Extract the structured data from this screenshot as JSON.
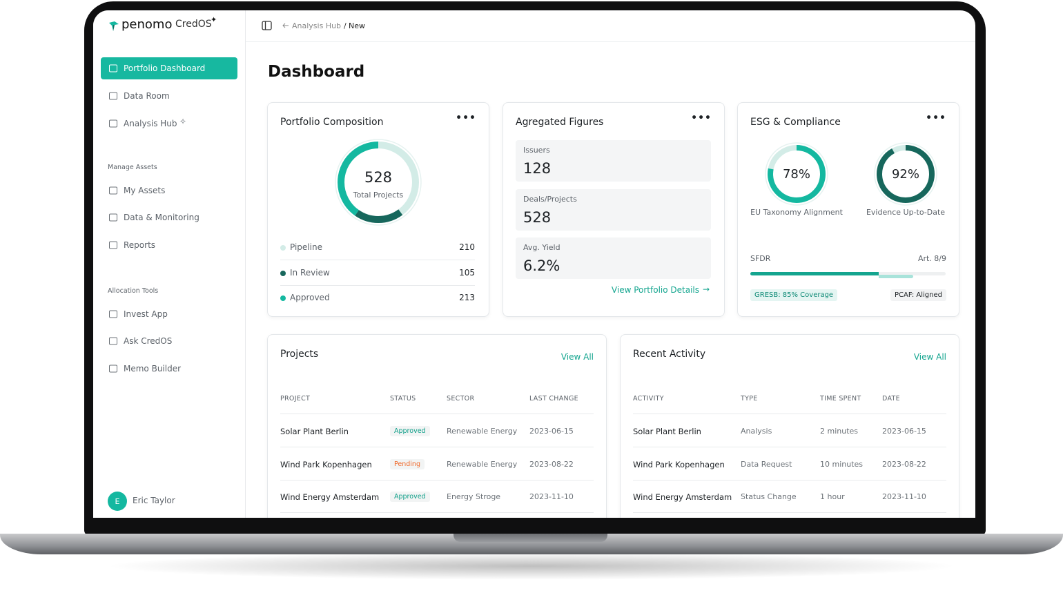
{
  "brand": {
    "name": "penomo",
    "product": "CredOS"
  },
  "breadcrumb": {
    "parent": "Analysis Hub",
    "current": "New"
  },
  "sidebar": {
    "nav": [
      "Portfolio Dashboard",
      "Data Room",
      "Analysis Hub"
    ],
    "sections": [
      {
        "title": "Manage Assets",
        "items": [
          "My Assets",
          "Data & Monitoring",
          "Reports"
        ]
      },
      {
        "title": "Allocation Tools",
        "items": [
          "Invest App",
          "Ask CredOS",
          "Memo Builder"
        ]
      }
    ],
    "user": {
      "initial": "E",
      "name": "Eric Taylor"
    }
  },
  "page_title": "Dashboard",
  "portfolio": {
    "title": "Portfolio Composition",
    "total": 528,
    "total_label": "Total Projects",
    "segments": [
      {
        "name": "Pipeline",
        "value": 210,
        "color": "#d3ece7"
      },
      {
        "name": "In Review",
        "value": 105,
        "color": "#17675c"
      },
      {
        "name": "Approved",
        "value": 213,
        "color": "#14b8a0"
      }
    ]
  },
  "aggregated": {
    "title": "Agregated Figures",
    "items": [
      {
        "label": "Issuers",
        "value": "128"
      },
      {
        "label": "Deals/Projects",
        "value": "528"
      },
      {
        "label": "Avg. Yield",
        "value": "6.2%"
      }
    ],
    "link": "View Portfolio Details"
  },
  "esg": {
    "title": "ESG & Compliance",
    "rings": [
      {
        "value": 78,
        "label": "78%",
        "name": "EU Taxonomy Alignment",
        "color": "#14b8a0"
      },
      {
        "value": 92,
        "label": "92%",
        "name": "Evidence Up-to-Date",
        "color": "#17675c"
      }
    ],
    "sfdr": {
      "label": "SFDR",
      "value": "Art. 8/9"
    },
    "badges": [
      "GRESB: 85% Coverage",
      "PCAF: Aligned"
    ]
  },
  "projects": {
    "title": "Projects",
    "link": "View All",
    "columns": [
      "PROJECT",
      "STATUS",
      "SECTOR",
      "LAST CHANGE"
    ],
    "rows": [
      [
        "Solar Plant Berlin",
        "Approved",
        "Renewable Energy",
        "2023-06-15"
      ],
      [
        "Wind Park Kopenhagen",
        "Pending",
        "Renewable Energy",
        "2023-08-22"
      ],
      [
        "Wind Energy Amsterdam",
        "Approved",
        "Energy Stroge",
        "2023-11-10"
      ]
    ],
    "status_colors": [
      "#0e9f88",
      "#f0692a",
      "#0e9f88"
    ]
  },
  "activity": {
    "title": "Recent Activity",
    "link": "View All",
    "columns": [
      "ACTIVITY",
      "TYPE",
      "TIME SPENT",
      "DATE"
    ],
    "rows": [
      [
        "Solar Plant Berlin",
        "Analysis",
        "2 minutes",
        "2023-06-15"
      ],
      [
        "Wind Park Kopenhagen",
        "Data Request",
        "10 minutes",
        "2023-08-22"
      ],
      [
        "Wind Energy Amsterdam",
        "Status Change",
        "1 hour",
        "2023-11-10"
      ]
    ]
  }
}
